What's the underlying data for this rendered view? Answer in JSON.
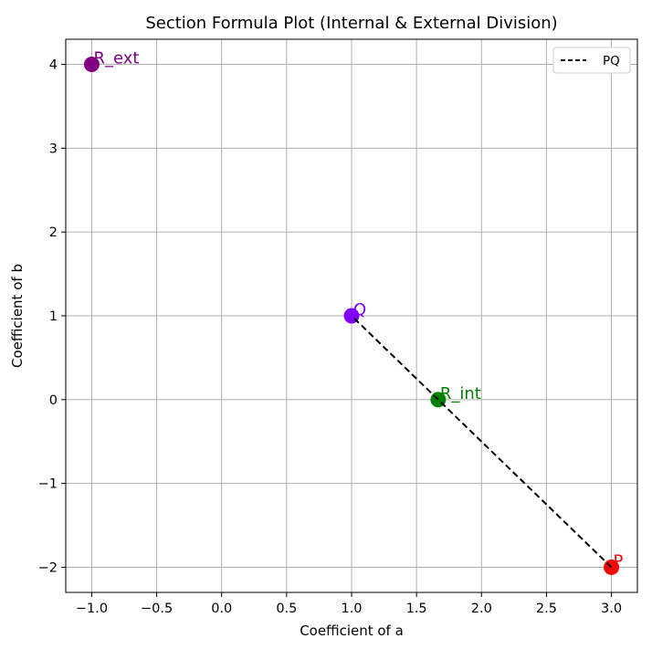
{
  "chart_data": {
    "type": "scatter",
    "title": "Section Formula Plot (Internal & External Division)",
    "xlabel": "Coefficient of a",
    "ylabel": "Coefficient of b",
    "xlim": [
      -1.2,
      3.2
    ],
    "ylim": [
      -2.3,
      4.3
    ],
    "xticks": [
      -1.0,
      -0.5,
      0.0,
      0.5,
      1.0,
      1.5,
      2.0,
      2.5,
      3.0
    ],
    "xtick_labels": [
      "−1.0",
      "−0.5",
      "0.0",
      "0.5",
      "1.0",
      "1.5",
      "2.0",
      "2.5",
      "3.0"
    ],
    "yticks": [
      -2,
      -1,
      0,
      1,
      2,
      3,
      4
    ],
    "ytick_labels": [
      "−2",
      "−1",
      "0",
      "1",
      "2",
      "3",
      "4"
    ],
    "grid": true,
    "legend": {
      "position": "top-right",
      "entries": [
        {
          "label": "PQ",
          "style": "dashed",
          "color": "#000000"
        }
      ]
    },
    "points": [
      {
        "label": "P",
        "x": 3.0,
        "y": -2.0,
        "color": "#ff0000"
      },
      {
        "label": "Q",
        "x": 1.0,
        "y": 1.0,
        "color": "#7f00ff"
      },
      {
        "label": "R_int",
        "x": 1.667,
        "y": 0.0,
        "color": "#008000"
      },
      {
        "label": "R_ext",
        "x": -1.0,
        "y": 4.0,
        "color": "#800080"
      }
    ],
    "lines": [
      {
        "name": "PQ",
        "x": [
          3.0,
          1.0
        ],
        "y": [
          -2.0,
          1.0
        ],
        "style": "dashed",
        "color": "#000000"
      }
    ]
  }
}
